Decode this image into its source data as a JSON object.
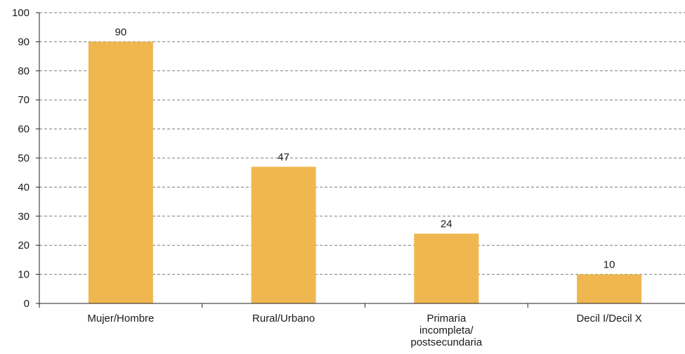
{
  "colors": {
    "bar": "#F0B64F",
    "grid": "#7a7a7a",
    "axis": "#222222",
    "text": "#1a1a1a"
  },
  "chart_data": {
    "type": "bar",
    "categories": [
      [
        "Mujer/Hombre"
      ],
      [
        "Rural/Urbano"
      ],
      [
        "Primaria",
        "incompleta/",
        "postsecundaria"
      ],
      [
        "Decil I/Decil X"
      ]
    ],
    "values": [
      90,
      47,
      24,
      10
    ],
    "data_labels": [
      "90",
      "47",
      "24",
      "10"
    ],
    "ylim": [
      0,
      100
    ],
    "yticks": [
      0,
      10,
      20,
      30,
      40,
      50,
      60,
      70,
      80,
      90,
      100
    ],
    "grid": true,
    "title": "",
    "xlabel": "",
    "ylabel": ""
  }
}
